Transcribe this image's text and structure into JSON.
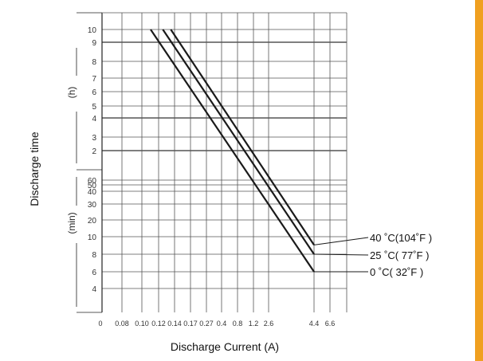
{
  "colors": {
    "accent": "#f0a020",
    "ink": "#222222",
    "grid": "#555555",
    "background": "#ffffff"
  },
  "chart_data": {
    "type": "line",
    "xlabel": "Discharge Current (A)",
    "ylabel": "Discharge time",
    "x_ticks": [
      "0",
      "0.08",
      "0.10",
      "0.12",
      "0.14",
      "0.17",
      "0.27",
      "0.4",
      "0.8",
      "1.2",
      "2.6",
      "4.4",
      "6.6"
    ],
    "y_ticks_hours": [
      "10",
      "9",
      "8",
      "7",
      "6",
      "5",
      "4",
      "3",
      "2"
    ],
    "y_ticks_minutes": [
      "60",
      "50",
      "40",
      "30",
      "20",
      "10",
      "8",
      "6",
      "4"
    ],
    "y_unit_hours": "(h)",
    "y_unit_minutes": "(min)",
    "x_scale": "log",
    "y_scale": "log",
    "grid": true,
    "legend_position": "right",
    "series": [
      {
        "name": "40 ˚C(104˚F )",
        "points": [
          [
            0.135,
            600
          ],
          [
            4.4,
            9
          ]
        ]
      },
      {
        "name": "25 ˚C( 77˚F )",
        "points": [
          [
            0.125,
            600
          ],
          [
            4.4,
            8
          ]
        ]
      },
      {
        "name": "0 ˚C( 32˚F )",
        "points": [
          [
            0.11,
            600
          ],
          [
            4.4,
            6
          ]
        ]
      }
    ]
  }
}
